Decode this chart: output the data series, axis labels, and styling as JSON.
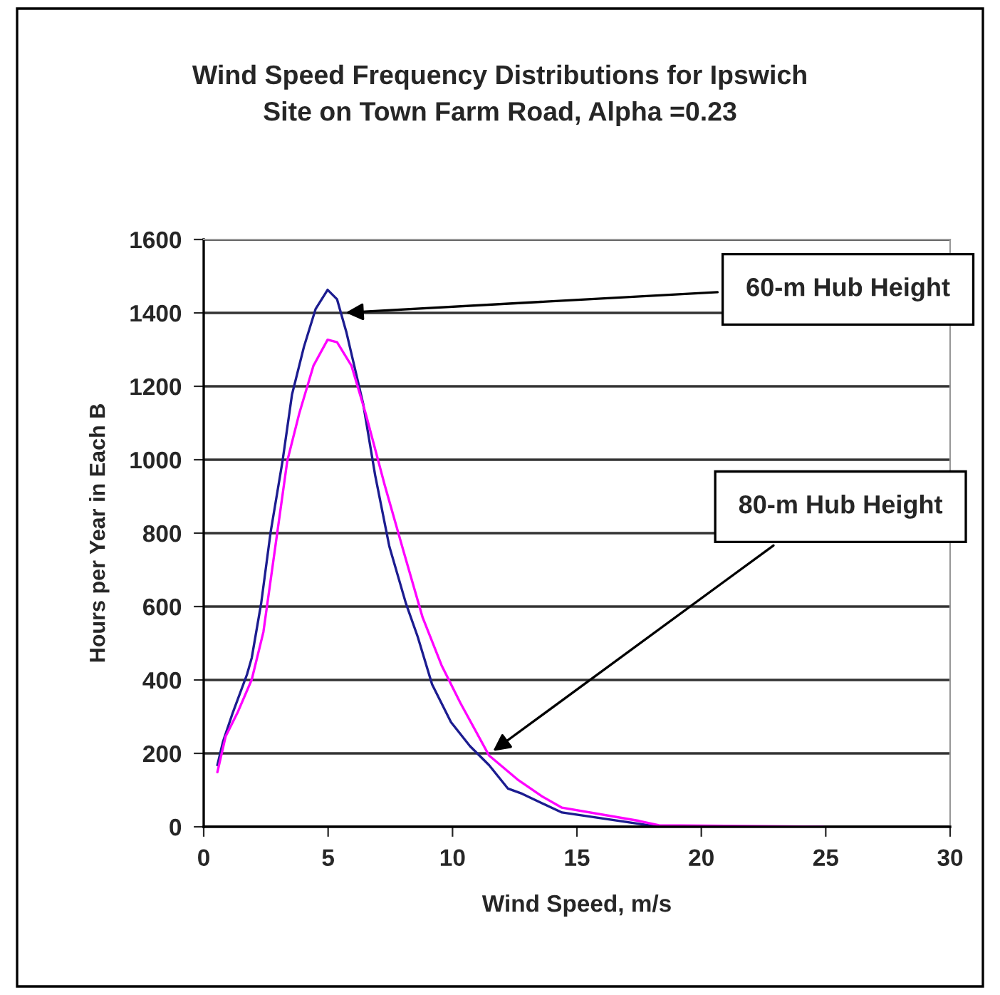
{
  "chart_data": {
    "type": "line",
    "title": "Wind Speed Frequency Distributions for Ipswich\nSite on Town Farm Road, Alpha =0.23",
    "xlabel": "Wind Speed, m/s",
    "ylabel": "Hours per Year in Each B",
    "xlim": [
      0,
      30
    ],
    "xticks": [
      0,
      5,
      10,
      15,
      20,
      25,
      30
    ],
    "ylim": [
      0,
      1600
    ],
    "yticks": [
      0,
      200,
      400,
      600,
      800,
      1000,
      1200,
      1400,
      1600
    ],
    "grid": "y",
    "legend": false,
    "marker": "none",
    "line_style": "solid",
    "series": [
      {
        "color": "#1c1c90",
        "x": [
          0.55,
          0.78,
          1.17,
          1.74,
          1.93,
          2.31,
          2.69,
          3.17,
          3.55,
          4.03,
          4.5,
          4.98,
          5.36,
          5.74,
          6.41,
          6.89,
          7.46,
          8.13,
          8.6,
          9.18,
          9.94,
          10.7,
          11.47,
          12.23,
          12.8,
          13.57,
          14.4,
          17.5,
          18.3,
          24.9
        ],
        "values": [
          168,
          233,
          311,
          415,
          460,
          609,
          803,
          997,
          1178,
          1308,
          1411,
          1463,
          1437,
          1346,
          1152,
          958,
          764,
          608,
          518,
          388,
          285,
          220,
          168,
          104,
          90,
          65,
          39,
          8,
          0,
          0
        ]
      },
      {
        "color": "#ff00ff",
        "x": [
          0.55,
          0.88,
          1.36,
          1.93,
          2.4,
          2.88,
          3.36,
          3.84,
          4.41,
          4.98,
          5.36,
          5.94,
          6.51,
          7.27,
          8.03,
          8.8,
          9.56,
          10.32,
          11.47,
          12.61,
          13.57,
          14.4,
          17.5,
          18.3,
          24.9
        ],
        "values": [
          149,
          246,
          311,
          401,
          531,
          764,
          997,
          1126,
          1256,
          1327,
          1320,
          1256,
          1126,
          932,
          751,
          570,
          440,
          337,
          194,
          129,
          84,
          52,
          16,
          4,
          0
        ]
      }
    ],
    "annotations": [
      {
        "text": "60-m Hub Height",
        "x": 5.55,
        "y": 1400
      },
      {
        "text": "80-m Hub Height",
        "x": 11.5,
        "y": 200
      }
    ]
  }
}
